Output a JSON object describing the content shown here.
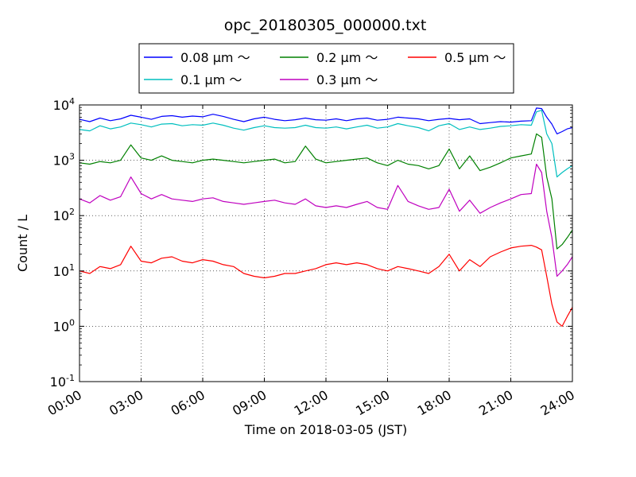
{
  "chart_data": {
    "type": "line",
    "title": "opc_20180305_000000.txt",
    "xlabel": "Time on 2018-03-05 (JST)",
    "ylabel": "Count / L",
    "yscale": "log",
    "ylim": [
      0.1,
      10000
    ],
    "xlim": [
      "00:00",
      "24:00"
    ],
    "grid": true,
    "legend_position": "top",
    "x_ticks": [
      "00:00",
      "03:00",
      "06:00",
      "09:00",
      "12:00",
      "15:00",
      "18:00",
      "21:00",
      "24:00"
    ],
    "y_ticks": [
      {
        "value": 0.1,
        "base": "10",
        "exp": "-1"
      },
      {
        "value": 1,
        "base": "10",
        "exp": "0"
      },
      {
        "value": 10,
        "base": "10",
        "exp": "1"
      },
      {
        "value": 100,
        "base": "10",
        "exp": "2"
      },
      {
        "value": 1000,
        "base": "10",
        "exp": "3"
      },
      {
        "value": 10000,
        "base": "10",
        "exp": "4"
      }
    ],
    "x_hours": [
      0,
      0.5,
      1,
      1.5,
      2,
      2.5,
      3,
      3.5,
      4,
      4.5,
      5,
      5.5,
      6,
      6.5,
      7,
      7.5,
      8,
      8.5,
      9,
      9.5,
      10,
      10.5,
      11,
      11.5,
      12,
      12.5,
      13,
      13.5,
      14,
      14.5,
      15,
      15.5,
      16,
      16.5,
      17,
      17.5,
      18,
      18.5,
      19,
      19.5,
      20,
      20.5,
      21,
      21.5,
      22,
      22.25,
      22.5,
      22.75,
      23,
      23.25,
      23.5,
      23.75,
      24
    ],
    "series": [
      {
        "name": "0.08 μm ～",
        "color": "#0000ff",
        "values": [
          5500,
          5000,
          5800,
          5200,
          5600,
          6500,
          6000,
          5500,
          6200,
          6400,
          6000,
          6300,
          6100,
          6800,
          6200,
          5500,
          5000,
          5600,
          6000,
          5500,
          5200,
          5400,
          5800,
          5400,
          5300,
          5600,
          5200,
          5600,
          5800,
          5300,
          5500,
          6000,
          5800,
          5600,
          5200,
          5500,
          5700,
          5400,
          5600,
          4600,
          4800,
          5000,
          4900,
          5100,
          5200,
          8800,
          8600,
          6000,
          4500,
          3000,
          3300,
          3700,
          3900
        ]
      },
      {
        "name": "0.1 μm ～",
        "color": "#00bfbf",
        "values": [
          3600,
          3400,
          4200,
          3700,
          4000,
          4700,
          4400,
          4000,
          4500,
          4600,
          4200,
          4400,
          4300,
          4700,
          4300,
          3800,
          3500,
          3900,
          4200,
          3900,
          3800,
          3900,
          4300,
          3900,
          3800,
          4000,
          3700,
          4000,
          4300,
          3800,
          4000,
          4600,
          4200,
          3900,
          3400,
          4200,
          4600,
          3600,
          4000,
          3600,
          3800,
          4100,
          4200,
          4400,
          4300,
          7500,
          8000,
          3000,
          2000,
          500,
          600,
          700,
          800
        ]
      },
      {
        "name": "0.2 μm ～",
        "color": "#008000",
        "values": [
          900,
          850,
          950,
          900,
          1000,
          1900,
          1100,
          1000,
          1200,
          1000,
          950,
          900,
          1000,
          1050,
          1000,
          950,
          900,
          950,
          1000,
          1050,
          900,
          950,
          1800,
          1050,
          900,
          950,
          1000,
          1050,
          1100,
          900,
          800,
          1000,
          850,
          800,
          700,
          800,
          1600,
          700,
          1200,
          650,
          750,
          900,
          1100,
          1200,
          1300,
          3000,
          2600,
          500,
          200,
          25,
          30,
          40,
          55
        ]
      },
      {
        "name": "0.3 μm ～",
        "color": "#bf00bf",
        "values": [
          200,
          170,
          230,
          190,
          220,
          500,
          250,
          200,
          240,
          200,
          190,
          180,
          200,
          210,
          180,
          170,
          160,
          170,
          180,
          190,
          170,
          160,
          200,
          150,
          140,
          150,
          140,
          160,
          180,
          140,
          130,
          350,
          180,
          150,
          130,
          140,
          300,
          120,
          190,
          110,
          140,
          170,
          200,
          240,
          250,
          850,
          600,
          120,
          40,
          8,
          10,
          13,
          18
        ]
      },
      {
        "name": "0.5 μm ～",
        "color": "#ff0000",
        "values": [
          10,
          9,
          12,
          11,
          13,
          28,
          15,
          14,
          17,
          18,
          15,
          14,
          16,
          15,
          13,
          12,
          9,
          8,
          7.5,
          8,
          9,
          9,
          10,
          11,
          13,
          14,
          13,
          14,
          13,
          11,
          10,
          12,
          11,
          10,
          9,
          12,
          20,
          10,
          16,
          12,
          18,
          22,
          26,
          28,
          29,
          27,
          24,
          8,
          2.5,
          1.2,
          1.0,
          1.5,
          2.2
        ]
      }
    ]
  }
}
